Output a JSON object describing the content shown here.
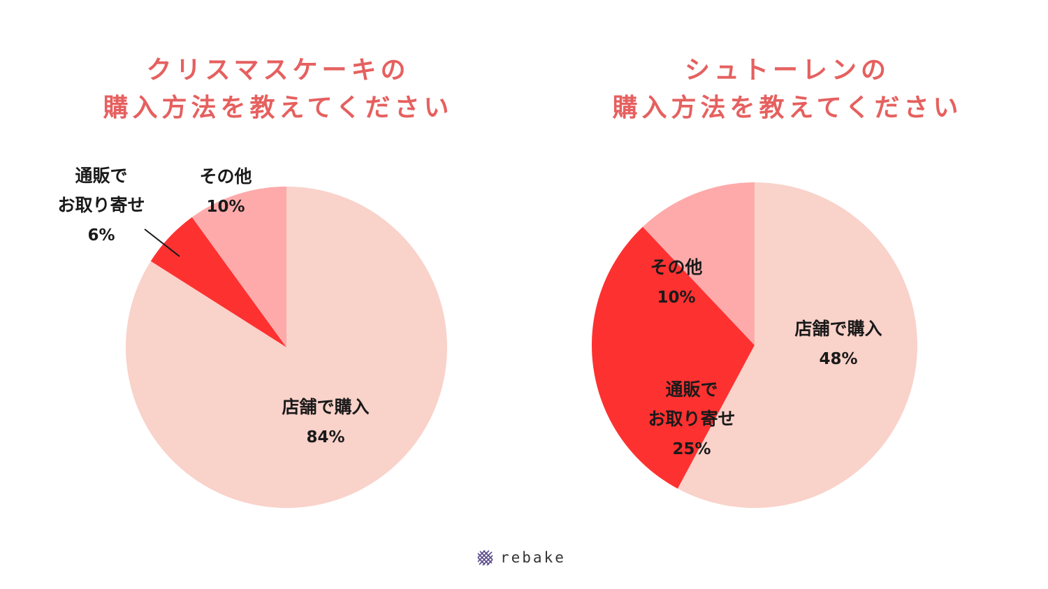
{
  "colors": {
    "title": "#e5605f",
    "store": "#f9d2ca",
    "mail": "#fe3131",
    "other": "#feaaaa",
    "text": "#1a1a1a"
  },
  "brand": {
    "name": "rebake",
    "icon": "grid-mesh-icon"
  },
  "chart_data": [
    {
      "type": "pie",
      "title": "クリスマスケーキの\n購入方法を教えてください",
      "title_lines": [
        "クリスマスケーキの",
        "購入方法を教えてください"
      ],
      "slices": [
        {
          "label_lines": [
            "店舗で購入"
          ],
          "value": 84,
          "value_label": "84%",
          "color": "#f9d2ca"
        },
        {
          "label_lines": [
            "通販で",
            "お取り寄せ"
          ],
          "value": 6,
          "value_label": "6%",
          "color": "#fe3131"
        },
        {
          "label_lines": [
            "その他"
          ],
          "value": 10,
          "value_label": "10%",
          "color": "#feaaaa"
        }
      ]
    },
    {
      "type": "pie",
      "title": "シュトーレンの\n購入方法を教えてください",
      "title_lines": [
        "シュトーレンの",
        "購入方法を教えてください"
      ],
      "slices": [
        {
          "label_lines": [
            "店舗で購入"
          ],
          "value": 48,
          "value_label": "48%",
          "color": "#f9d2ca"
        },
        {
          "label_lines": [
            "通販で",
            "お取り寄せ"
          ],
          "value": 25,
          "value_label": "25%",
          "color": "#fe3131"
        },
        {
          "label_lines": [
            "その他"
          ],
          "value": 10,
          "value_label": "10%",
          "color": "#feaaaa"
        }
      ]
    }
  ]
}
